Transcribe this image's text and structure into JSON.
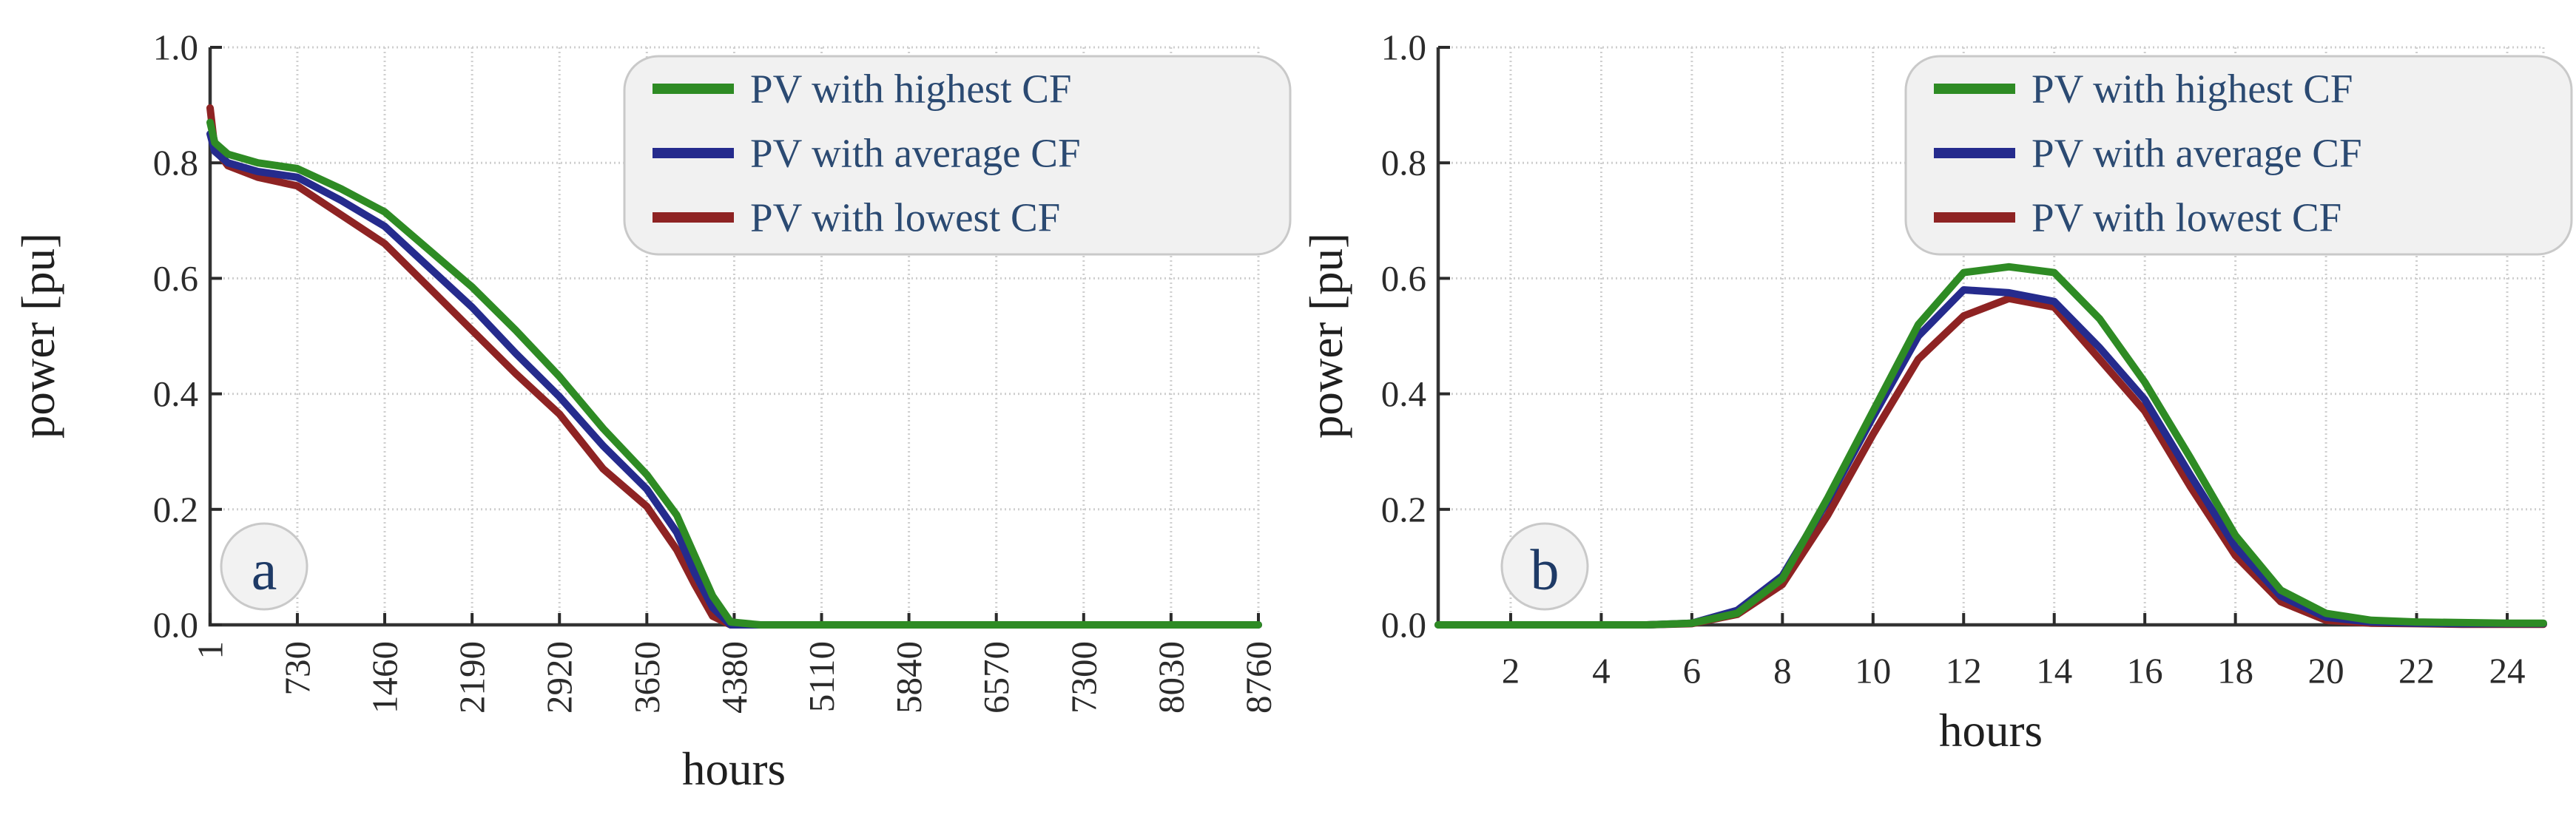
{
  "figure": {
    "background": "#ffffff",
    "colors": {
      "highest": "#2e8b24",
      "average": "#252b8d",
      "lowest": "#8e2323"
    },
    "text_colors": {
      "legend": "#2b4a72",
      "ticks": "#2b2b2b",
      "badge": "#1e3a66",
      "axis": "#1f1f1f"
    },
    "grid_color": "#cfcfcf",
    "spine_color": "#333333"
  },
  "legend": {
    "items": [
      {
        "label": "PV with highest CF",
        "color_key": "highest"
      },
      {
        "label": "PV with average CF",
        "color_key": "average"
      },
      {
        "label": "PV with lowest CF",
        "color_key": "lowest"
      }
    ]
  },
  "chart_data": [
    {
      "id": "a",
      "type": "line",
      "badge": "a",
      "title": "",
      "xlabel": "hours",
      "ylabel": "power [pu]",
      "xlim": [
        1,
        8760
      ],
      "ylim": [
        0,
        1
      ],
      "grid": true,
      "legend_position": "top-right",
      "xticks": [
        1,
        730,
        1460,
        2190,
        2920,
        3650,
        4380,
        5110,
        5840,
        6570,
        7300,
        8030,
        8760
      ],
      "xtick_labels": [
        "1",
        "730",
        "1460",
        "2190",
        "2920",
        "3650",
        "4380",
        "5110",
        "5840",
        "6570",
        "7300",
        "8030",
        "8760"
      ],
      "yticks": [
        0,
        0.2,
        0.4,
        0.6,
        0.8,
        1
      ],
      "ytick_labels": [
        "0.0",
        "0.2",
        "0.4",
        "0.6",
        "0.8",
        "1.0"
      ],
      "x": [
        1,
        40,
        150,
        400,
        730,
        1095,
        1460,
        1825,
        2190,
        2555,
        2920,
        3285,
        3650,
        3900,
        4050,
        4200,
        4350,
        4600,
        5110,
        5840,
        6570,
        7300,
        8030,
        8760
      ],
      "series": [
        {
          "name": "PV with highest CF",
          "color_key": "highest",
          "values": [
            0.87,
            0.835,
            0.815,
            0.8,
            0.79,
            0.755,
            0.715,
            0.65,
            0.585,
            0.51,
            0.43,
            0.34,
            0.26,
            0.19,
            0.12,
            0.05,
            0.005,
            0,
            0,
            0,
            0,
            0,
            0,
            0
          ]
        },
        {
          "name": "PV with average CF",
          "color_key": "average",
          "values": [
            0.85,
            0.82,
            0.8,
            0.785,
            0.775,
            0.735,
            0.69,
            0.62,
            0.55,
            0.47,
            0.395,
            0.31,
            0.235,
            0.16,
            0.09,
            0.03,
            0,
            0,
            0,
            0,
            0,
            0,
            0,
            0
          ]
        },
        {
          "name": "PV with lowest CF",
          "color_key": "lowest",
          "values": [
            0.895,
            0.825,
            0.795,
            0.775,
            0.76,
            0.71,
            0.66,
            0.585,
            0.51,
            0.435,
            0.365,
            0.27,
            0.205,
            0.13,
            0.07,
            0.015,
            0,
            0,
            0,
            0,
            0,
            0,
            0,
            0
          ]
        }
      ]
    },
    {
      "id": "b",
      "type": "line",
      "badge": "b",
      "title": "",
      "xlabel": "hours",
      "ylabel": "power [pu]",
      "xlim": [
        1,
        24
      ],
      "ylim": [
        0,
        1
      ],
      "grid": true,
      "legend_position": "top-right",
      "xticks": [
        2,
        4,
        6,
        8,
        10,
        12,
        14,
        16,
        18,
        20,
        22,
        24
      ],
      "xtick_labels": [
        "2",
        "4",
        "6",
        "8",
        "10",
        "12",
        "14",
        "16",
        "18",
        "20",
        "22",
        "24"
      ],
      "yticks": [
        0,
        0.2,
        0.4,
        0.6,
        0.8,
        1
      ],
      "ytick_labels": [
        "0.0",
        "0.2",
        "0.4",
        "0.6",
        "0.8",
        "1.0"
      ],
      "x": [
        1,
        2,
        3,
        4,
        5,
        6,
        7,
        8,
        9,
        10,
        11,
        12,
        13,
        14,
        15,
        16,
        17,
        18,
        19,
        20,
        21,
        22,
        23,
        24
      ],
      "series": [
        {
          "name": "PV with highest CF",
          "color_key": "highest",
          "values": [
            0,
            0,
            0,
            0,
            0,
            0.003,
            0.02,
            0.08,
            0.22,
            0.37,
            0.52,
            0.61,
            0.62,
            0.61,
            0.53,
            0.42,
            0.29,
            0.155,
            0.06,
            0.02,
            0.008,
            0.005,
            0.004,
            0.003
          ]
        },
        {
          "name": "PV with average CF",
          "color_key": "average",
          "values": [
            0,
            0,
            0,
            0,
            0,
            0.003,
            0.025,
            0.085,
            0.215,
            0.36,
            0.5,
            0.58,
            0.575,
            0.56,
            0.48,
            0.39,
            0.26,
            0.135,
            0.05,
            0.013,
            0.005,
            0.003,
            0.002,
            0.002
          ]
        },
        {
          "name": "PV with lowest CF",
          "color_key": "lowest",
          "values": [
            0,
            0,
            0,
            0,
            0,
            0.002,
            0.018,
            0.07,
            0.19,
            0.33,
            0.46,
            0.535,
            0.565,
            0.55,
            0.46,
            0.37,
            0.24,
            0.12,
            0.04,
            0.008,
            0.003,
            0.002,
            0.001,
            0.001
          ]
        }
      ]
    }
  ]
}
